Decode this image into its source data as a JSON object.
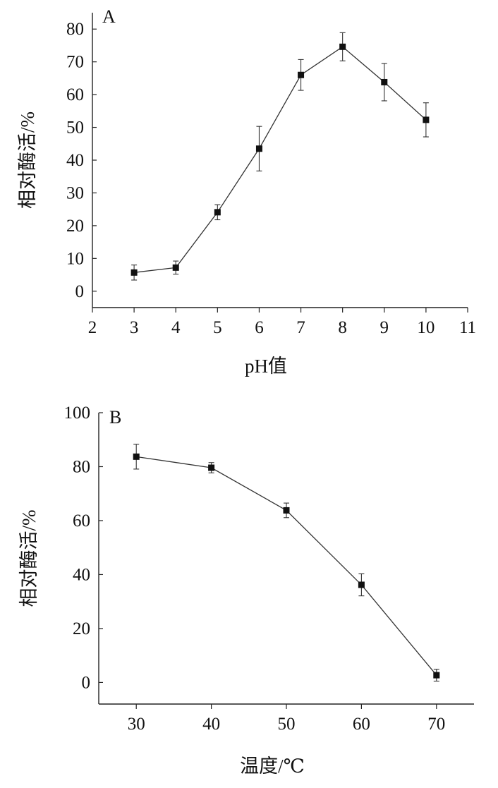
{
  "chart_data": [
    {
      "panel_label": "A",
      "type": "line",
      "xlabel": "pH值",
      "ylabel": "相对酶活/%",
      "xlim": [
        2,
        11
      ],
      "ylim": [
        -5,
        85
      ],
      "xticks": [
        2,
        3,
        4,
        5,
        6,
        7,
        8,
        9,
        10,
        11
      ],
      "yticks": [
        0,
        10,
        20,
        30,
        40,
        50,
        60,
        70,
        80
      ],
      "x": [
        3,
        4,
        5,
        6,
        7,
        8,
        9,
        10
      ],
      "y": [
        5.7,
        7.2,
        24.1,
        43.5,
        66.0,
        74.6,
        63.8,
        52.3
      ],
      "error": [
        2.3,
        2.0,
        2.3,
        6.8,
        4.7,
        4.3,
        5.7,
        5.2
      ],
      "marker": "square",
      "color": "#111111",
      "grid": false
    },
    {
      "panel_label": "B",
      "type": "line",
      "xlabel": "温度/℃",
      "ylabel": "相对酶活/%",
      "xlim": [
        25,
        75
      ],
      "ylim": [
        -8,
        100
      ],
      "xticks": [
        30,
        40,
        50,
        60,
        70
      ],
      "yticks": [
        0,
        20,
        40,
        60,
        80,
        100
      ],
      "x": [
        30,
        40,
        50,
        60,
        70
      ],
      "y": [
        83.7,
        79.6,
        63.8,
        36.2,
        2.7
      ],
      "error": [
        4.6,
        1.9,
        2.7,
        4.1,
        2.2
      ],
      "marker": "square",
      "color": "#111111",
      "grid": false
    }
  ]
}
